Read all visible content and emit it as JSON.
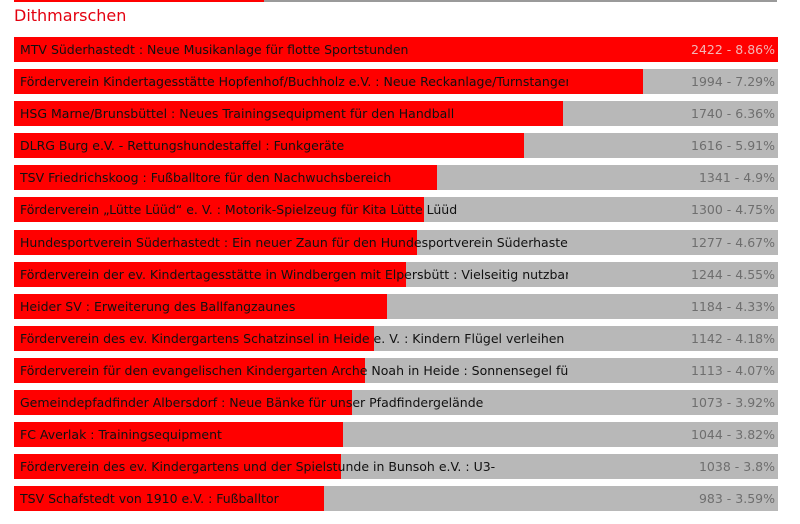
{
  "region": {
    "title": "Dithmarschen"
  },
  "colors": {
    "bar_fill": "#ff0000",
    "bar_track": "#b8b8b8",
    "title": "#e3000f",
    "value_text": "#6e6e6e"
  },
  "chart_data": {
    "type": "bar",
    "orientation": "horizontal",
    "title": "",
    "categories": [
      "MTV Süderhastedt : Neue Musikanlage für flotte Sportstunden",
      "Förderverein Kindertagesstätte Hopfenhof/Buchholz e.V. : Neue Reckanlage/Turnstangen für",
      "HSG Marne/Brunsbüttel : Neues Trainingsequipment für den Handball",
      "DLRG Burg e.V. - Rettungshundestaffel : Funkgeräte",
      "TSV Friedrichskoog : Fußballtore für den Nachwuchsbereich",
      "Förderverein „Lütte Lüüd“ e. V. : Motorik-Spielzeug für Kita Lütte Lüüd",
      "Hundesportverein Süderhastedt : Ein neuer Zaun für den Hundesportverein Süderhastedt",
      "Förderverein der ev. Kindertagesstätte in Windbergen mit Elpersbütt : Vielseitig nutzbarer",
      "Heider SV : Erweiterung des Ballfangzaunes",
      "Förderverein des ev. Kindergartens Schatzinsel in Heide e. V. : Kindern Flügel verleihen –",
      "Förderverein für den evangelischen Kindergarten Arche Noah in Heide : Sonnensegel für das",
      "Gemeindepfadfinder Albersdorf : Neue Bänke für unser Pfadfindergelände",
      "FC Averlak : Trainingsequipment",
      "Förderverein des ev. Kindergartens und der Spielstunde in Bunsoh e.V. : U3-",
      "TSV Schafstedt von 1910 e.V. : Fußballtor"
    ],
    "values": [
      2422,
      1994,
      1740,
      1616,
      1341,
      1300,
      1277,
      1244,
      1184,
      1142,
      1113,
      1073,
      1044,
      1038,
      983
    ],
    "value_labels": [
      "2422 - 8.86%",
      "1994 - 7.29%",
      "1740 - 6.36%",
      "1616 - 5.91%",
      "1341 - 4.9%",
      "1300 - 4.75%",
      "1277 - 4.67%",
      "1244 - 4.55%",
      "1184 - 4.33%",
      "1142 - 4.18%",
      "1113 - 4.07%",
      "1073 - 3.92%",
      "1044 - 3.82%",
      "1038 - 3.8%",
      "983 - 3.59%"
    ],
    "xlim": [
      0,
      2422
    ],
    "grid": false,
    "legend": "none"
  }
}
